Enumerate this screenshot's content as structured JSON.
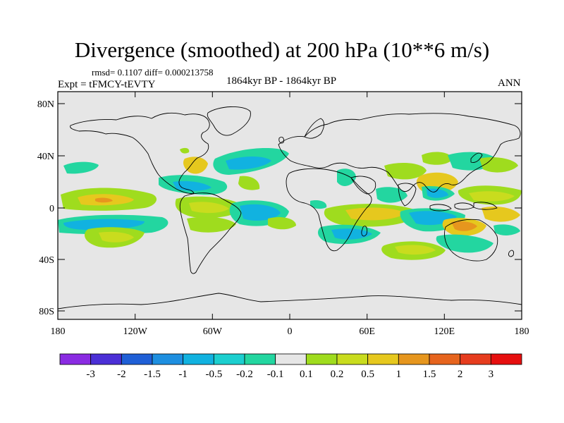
{
  "title": "Divergence (smoothed) at 200 hPa (10**6 m/s)",
  "stats": "rmsd= 0.1107 diff= 0.000213758",
  "experiment": "Expt = tFMCY-tEVTY",
  "period": "1864kyr BP - 1864kyr BP",
  "season": "ANN",
  "lat_ticks": [
    "80N",
    "40N",
    "0",
    "40S",
    "80S"
  ],
  "lon_ticks": [
    "180",
    "120W",
    "60W",
    "0",
    "60E",
    "120E",
    "180"
  ],
  "colorbar": {
    "labels": [
      "-3",
      "-2",
      "-1.5",
      "-1",
      "-0.5",
      "-0.2",
      "-0.1",
      "0.1",
      "0.2",
      "0.5",
      "1",
      "1.5",
      "2",
      "3"
    ],
    "colors": [
      "#8a2be2",
      "#4b2fd6",
      "#1f5fd6",
      "#1e8fe0",
      "#11b2e0",
      "#1ccfcf",
      "#23d6a0",
      "#e6e6e6",
      "#9fdc1e",
      "#c9dc1e",
      "#e6c81e",
      "#e6961e",
      "#e6641e",
      "#e63c1e",
      "#e60f0f"
    ]
  },
  "colors": {
    "ocean": "#e6e6e6",
    "coast": "#000000"
  }
}
